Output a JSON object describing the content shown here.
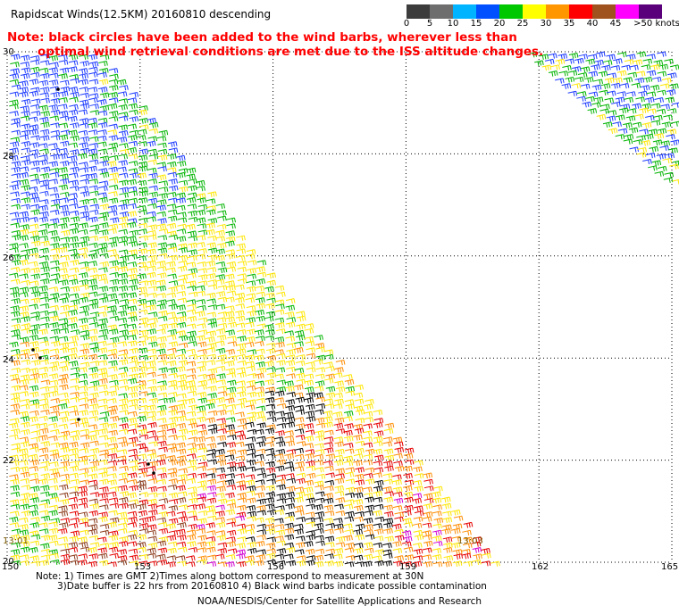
{
  "header": {
    "title": "Rapidscat Winds(12.5KM) 20160810 descending",
    "note_line1": "Note: black circles have been added to the wind barbs, wherever less than",
    "note_line2": "optimal wind retrieval conditions are met due to the ISS altitude changes."
  },
  "colorbar": {
    "unit": "knots",
    "labels": [
      "0",
      "5",
      "10",
      "15",
      "20",
      "25",
      "30",
      "35",
      "40",
      "45",
      ">50 knots"
    ],
    "colors": [
      "#3c3c3c",
      "#6e6e6e",
      "#00b4ff",
      "#0050ff",
      "#00c800",
      "#ffff00",
      "#ff9600",
      "#ff0000",
      "#a0521e",
      "#ff00ff",
      "#5a007a"
    ]
  },
  "map": {
    "lat_labels": [
      "30",
      "28",
      "26",
      "24",
      "22",
      "20"
    ],
    "lon_labels": [
      "150",
      "153",
      "156",
      "159",
      "162",
      "165"
    ],
    "time_labels": [
      "13:01",
      "13:03"
    ],
    "barb_colors": {
      "blue": "#1e3cff",
      "green": "#00b400",
      "yellow": "#ffe600",
      "orange": "#ff8c00",
      "red": "#e60000",
      "brown": "#8b3a1a",
      "black": "#000000",
      "magenta": "#d200d2"
    }
  },
  "footer": {
    "line1": "Note: 1) Times are GMT 2)Times along bottom correspond to measurement at 30N",
    "line2": "3)Date buffer is 22 hrs from 20160810 4) Black wind barbs indicate possible contamination",
    "credit": "NOAA/NESDIS/Center for Satellite Applications and Research"
  }
}
